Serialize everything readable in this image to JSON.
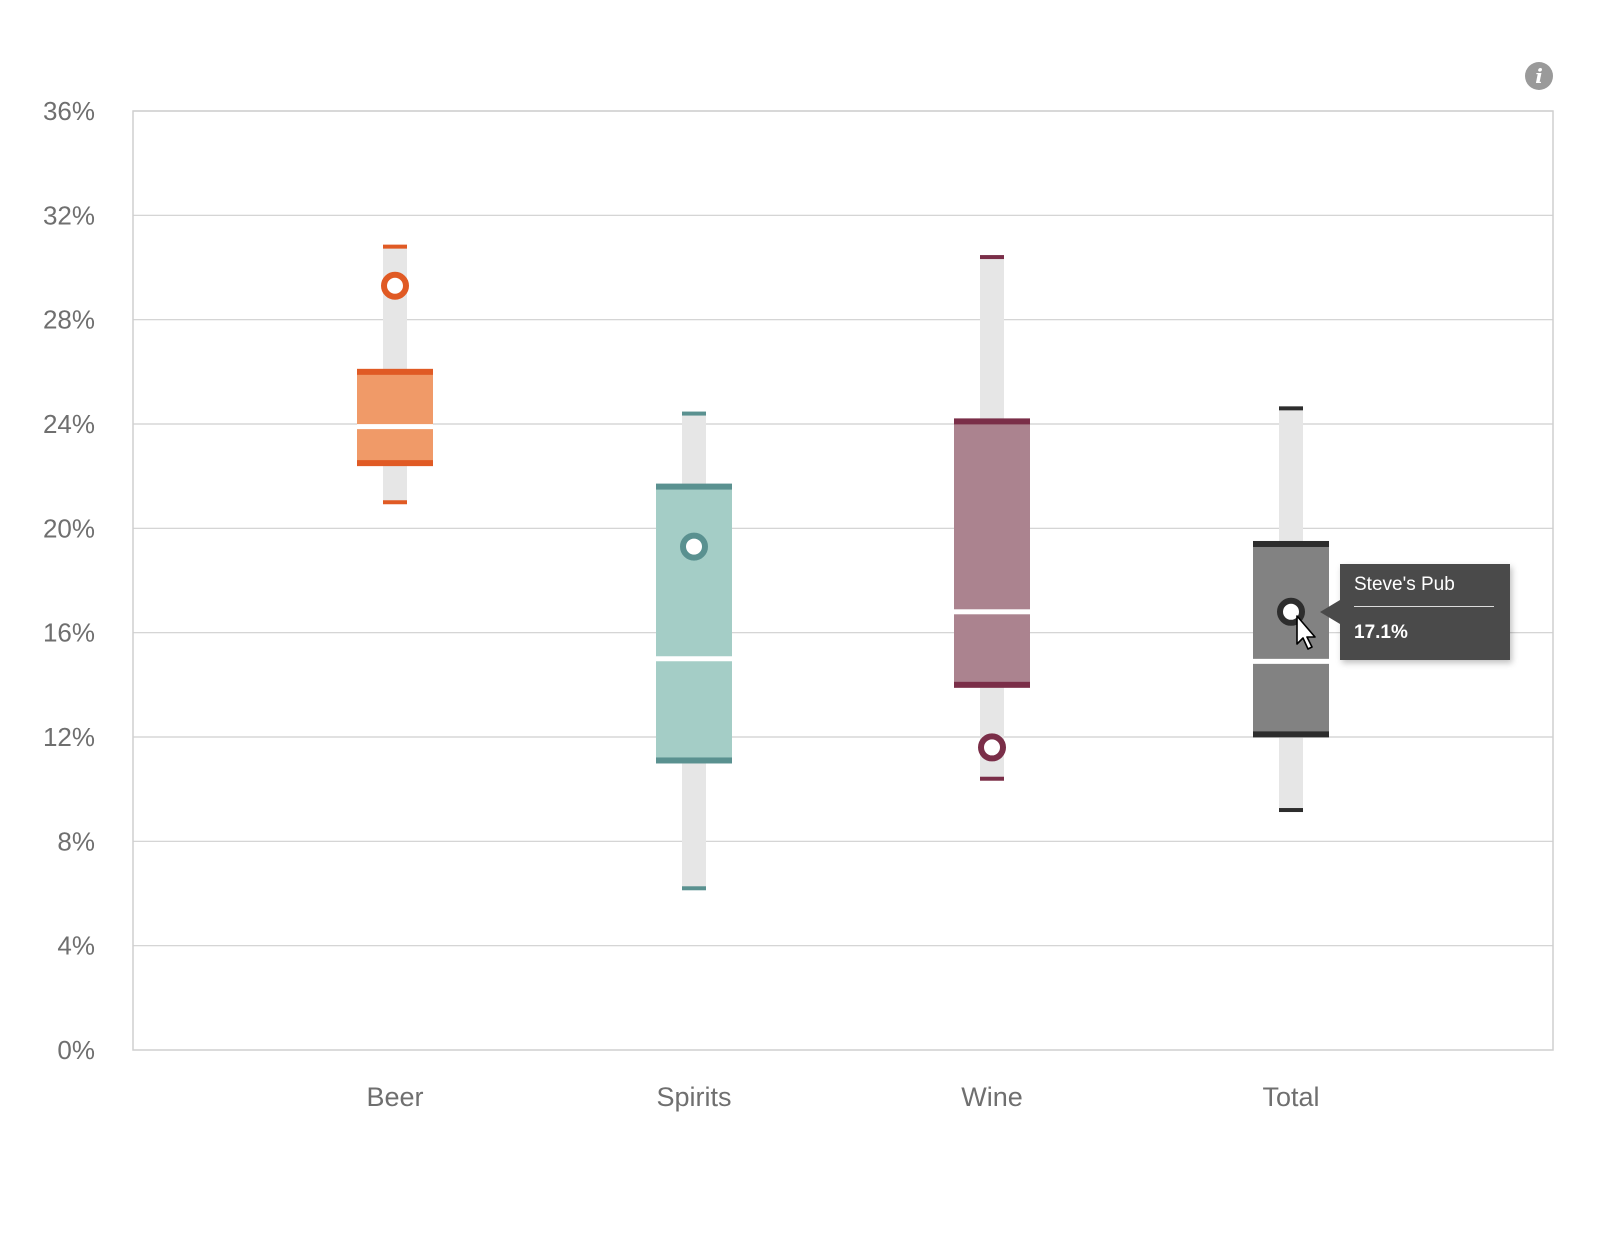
{
  "chart_data": {
    "type": "box",
    "categories": [
      "Beer",
      "Spirits",
      "Wine",
      "Total"
    ],
    "ylim": [
      0,
      36
    ],
    "yticks": [
      "0%",
      "4%",
      "8%",
      "12%",
      "16%",
      "20%",
      "24%",
      "28%",
      "32%",
      "36%"
    ],
    "ytick_values": [
      0,
      4,
      8,
      12,
      16,
      20,
      24,
      28,
      32,
      36
    ],
    "grid": true,
    "series": [
      {
        "category": "Beer",
        "min": 21.0,
        "q1": 22.5,
        "median": 23.9,
        "q3": 26.0,
        "max": 30.8,
        "highlight": 29.3,
        "color": "#e05a24",
        "fill": "#f09a68"
      },
      {
        "category": "Spirits",
        "min": 6.2,
        "q1": 11.1,
        "median": 15.0,
        "q3": 21.6,
        "max": 24.4,
        "highlight": 19.3,
        "color": "#5a9190",
        "fill": "#a4cdc6"
      },
      {
        "category": "Wine",
        "min": 10.4,
        "q1": 14.0,
        "median": 16.8,
        "q3": 24.1,
        "max": 30.4,
        "highlight": 11.6,
        "color": "#7a2e48",
        "fill": "#ab838f"
      },
      {
        "category": "Total",
        "min": 9.2,
        "q1": 12.1,
        "median": 14.9,
        "q3": 19.4,
        "max": 24.6,
        "highlight": 16.8,
        "color": "#2d2d2d",
        "fill": "#828282"
      }
    ]
  },
  "tooltip": {
    "name": "Steve's Pub",
    "value": "17.1%"
  },
  "info_icon": "info-icon",
  "colors": {
    "grid": "#cfcfcf",
    "axis_text": "#6f6f6f",
    "whisker_track": "#e6e6e6",
    "tooltip_bg": "#4a4a4a"
  }
}
